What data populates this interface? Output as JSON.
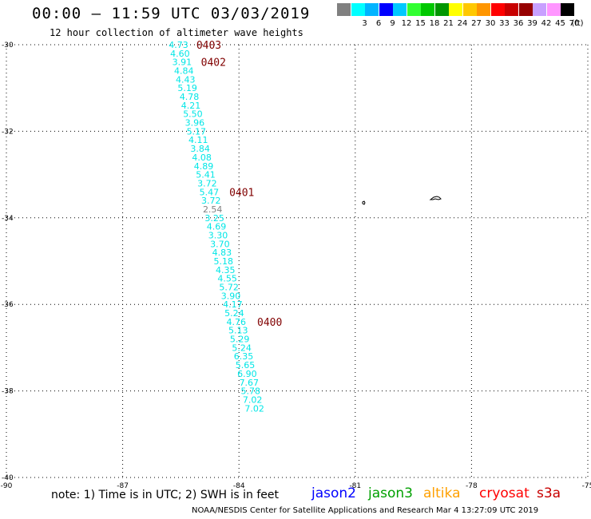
{
  "header": {
    "title": "00:00 – 11:59 UTC 03/03/2019",
    "subtitle": "12 hour collection of altimeter wave heights"
  },
  "color_scale": {
    "unit": "(ft)",
    "bins": [
      {
        "label": "",
        "color": "#808080"
      },
      {
        "label": "3",
        "color": "#00ffff"
      },
      {
        "label": "6",
        "color": "#00b4ff"
      },
      {
        "label": "9",
        "color": "#0000ff"
      },
      {
        "label": "12",
        "color": "#00c8ff"
      },
      {
        "label": "15",
        "color": "#32ff32"
      },
      {
        "label": "18",
        "color": "#00c800"
      },
      {
        "label": "21",
        "color": "#009600"
      },
      {
        "label": "24",
        "color": "#ffff00"
      },
      {
        "label": "27",
        "color": "#ffc800"
      },
      {
        "label": "30",
        "color": "#ff9600"
      },
      {
        "label": "33",
        "color": "#ff0000"
      },
      {
        "label": "36",
        "color": "#c80000"
      },
      {
        "label": "39",
        "color": "#960000"
      },
      {
        "label": "42",
        "color": "#c8a0ff"
      },
      {
        "label": "45",
        "color": "#ff96ff"
      },
      {
        "label": "70",
        "color": "#000000"
      }
    ]
  },
  "map": {
    "lat_labels": [
      "-30",
      "-32",
      "-34",
      "-36",
      "-38",
      "-40"
    ],
    "lon_labels": [
      "-90",
      "-87",
      "-84",
      "-81",
      "-78",
      "-75"
    ],
    "swh_color": "#00e6e6",
    "low_color": "#808080",
    "time_color": "#800000",
    "observations": [
      {
        "lat": -30.0,
        "lon": -85.56,
        "swh": "4.73"
      },
      {
        "lat": -30.2,
        "lon": -85.52,
        "swh": "4.60"
      },
      {
        "lat": -30.4,
        "lon": -85.47,
        "swh": "3.91"
      },
      {
        "lat": -30.6,
        "lon": -85.42,
        "swh": "4.84"
      },
      {
        "lat": -30.8,
        "lon": -85.38,
        "swh": "4.43"
      },
      {
        "lat": -31.0,
        "lon": -85.33,
        "swh": "5.19"
      },
      {
        "lat": -31.2,
        "lon": -85.28,
        "swh": "4.78"
      },
      {
        "lat": -31.4,
        "lon": -85.24,
        "swh": "4.21"
      },
      {
        "lat": -31.6,
        "lon": -85.19,
        "swh": "5.50"
      },
      {
        "lat": -31.8,
        "lon": -85.14,
        "swh": "3.96"
      },
      {
        "lat": -32.0,
        "lon": -85.1,
        "swh": "5.17"
      },
      {
        "lat": -32.2,
        "lon": -85.05,
        "swh": "4.11"
      },
      {
        "lat": -32.4,
        "lon": -85.0,
        "swh": "3.84"
      },
      {
        "lat": -32.6,
        "lon": -84.96,
        "swh": "4.08"
      },
      {
        "lat": -32.8,
        "lon": -84.91,
        "swh": "4.89"
      },
      {
        "lat": -33.0,
        "lon": -84.86,
        "swh": "5.41"
      },
      {
        "lat": -33.2,
        "lon": -84.82,
        "swh": "3.72"
      },
      {
        "lat": -33.4,
        "lon": -84.77,
        "swh": "5.47"
      },
      {
        "lat": -33.6,
        "lon": -84.72,
        "swh": "3.72"
      },
      {
        "lat": -33.8,
        "lon": -84.68,
        "swh": "2.54",
        "low": true
      },
      {
        "lat": -34.0,
        "lon": -84.63,
        "swh": "3.25"
      },
      {
        "lat": -34.2,
        "lon": -84.58,
        "swh": "4.69"
      },
      {
        "lat": -34.4,
        "lon": -84.54,
        "swh": "3.30"
      },
      {
        "lat": -34.6,
        "lon": -84.49,
        "swh": "3.70"
      },
      {
        "lat": -34.8,
        "lon": -84.44,
        "swh": "4.83"
      },
      {
        "lat": -35.0,
        "lon": -84.4,
        "swh": "5.18"
      },
      {
        "lat": -35.2,
        "lon": -84.35,
        "swh": "4.35"
      },
      {
        "lat": -35.4,
        "lon": -84.3,
        "swh": "4.55"
      },
      {
        "lat": -35.6,
        "lon": -84.26,
        "swh": "5.72"
      },
      {
        "lat": -35.8,
        "lon": -84.21,
        "swh": "3.90"
      },
      {
        "lat": -36.0,
        "lon": -84.16,
        "swh": "4.17"
      },
      {
        "lat": -36.2,
        "lon": -84.12,
        "swh": "5.24"
      },
      {
        "lat": -36.4,
        "lon": -84.07,
        "swh": "4.76"
      },
      {
        "lat": -36.6,
        "lon": -84.02,
        "swh": "5.13"
      },
      {
        "lat": -36.8,
        "lon": -83.98,
        "swh": "5.29"
      },
      {
        "lat": -37.0,
        "lon": -83.93,
        "swh": "5.24"
      },
      {
        "lat": -37.2,
        "lon": -83.88,
        "swh": "6.35"
      },
      {
        "lat": -37.4,
        "lon": -83.84,
        "swh": "5.65"
      },
      {
        "lat": -37.6,
        "lon": -83.79,
        "swh": "6.90"
      },
      {
        "lat": -37.8,
        "lon": -83.74,
        "swh": "7.67"
      },
      {
        "lat": -38.0,
        "lon": -83.7,
        "swh": "5.78"
      },
      {
        "lat": -38.2,
        "lon": -83.65,
        "swh": "7.02"
      },
      {
        "lat": -38.4,
        "lon": -83.6,
        "swh": "7.02"
      }
    ],
    "time_labels": [
      {
        "lat": -30.0,
        "lon": -85.1,
        "text": "0403"
      },
      {
        "lat": -30.4,
        "lon": -84.98,
        "text": "0402"
      },
      {
        "lat": -33.4,
        "lon": -84.25,
        "text": "0401"
      },
      {
        "lat": -36.4,
        "lon": -83.53,
        "text": "0400"
      }
    ]
  },
  "footer": {
    "note": "note: 1) Time is in UTC; 2) SWH is in feet",
    "satellites": [
      {
        "name": "jason2",
        "color": "#0000ff"
      },
      {
        "name": "jason3",
        "color": "#00a000"
      },
      {
        "name": "altika",
        "color": "#ffa000"
      },
      {
        "name": "cryosat",
        "color": "#ff0000"
      },
      {
        "name": "s3a",
        "color": "#c80000"
      }
    ],
    "credit": "NOAA/NESDIS Center for Satellite Applications and Research   Mar  4 13:27:09 UTC 2019"
  }
}
